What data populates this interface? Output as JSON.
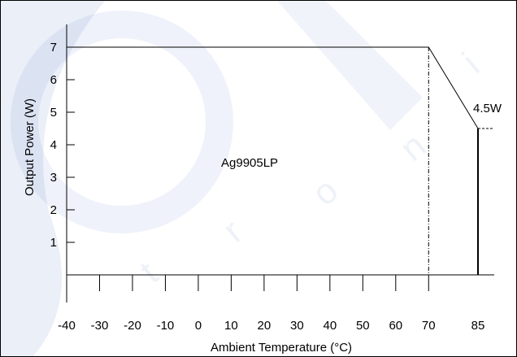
{
  "watermark": {
    "color_primary": "#2f5fbf",
    "letters": [
      "t",
      "r",
      "o",
      "n",
      "i"
    ]
  },
  "chart_data": {
    "type": "line",
    "title": "",
    "xlabel": "Ambient Temperature (°C)",
    "ylabel": "Output Power (W)",
    "x_ticks": [
      -40,
      -30,
      -20,
      -10,
      0,
      10,
      20,
      30,
      40,
      50,
      60,
      70,
      85
    ],
    "y_ticks": [
      1,
      2,
      3,
      4,
      5,
      6,
      7
    ],
    "xlim": [
      -40,
      85
    ],
    "ylim": [
      0,
      7
    ],
    "grid": false,
    "series": [
      {
        "name": "Ag9905LP",
        "x": [
          -40,
          70,
          85
        ],
        "y": [
          7,
          7,
          4.5
        ]
      }
    ],
    "annotations": {
      "series_label": "Ag9905LP",
      "end_value_label": "4.5W"
    }
  }
}
